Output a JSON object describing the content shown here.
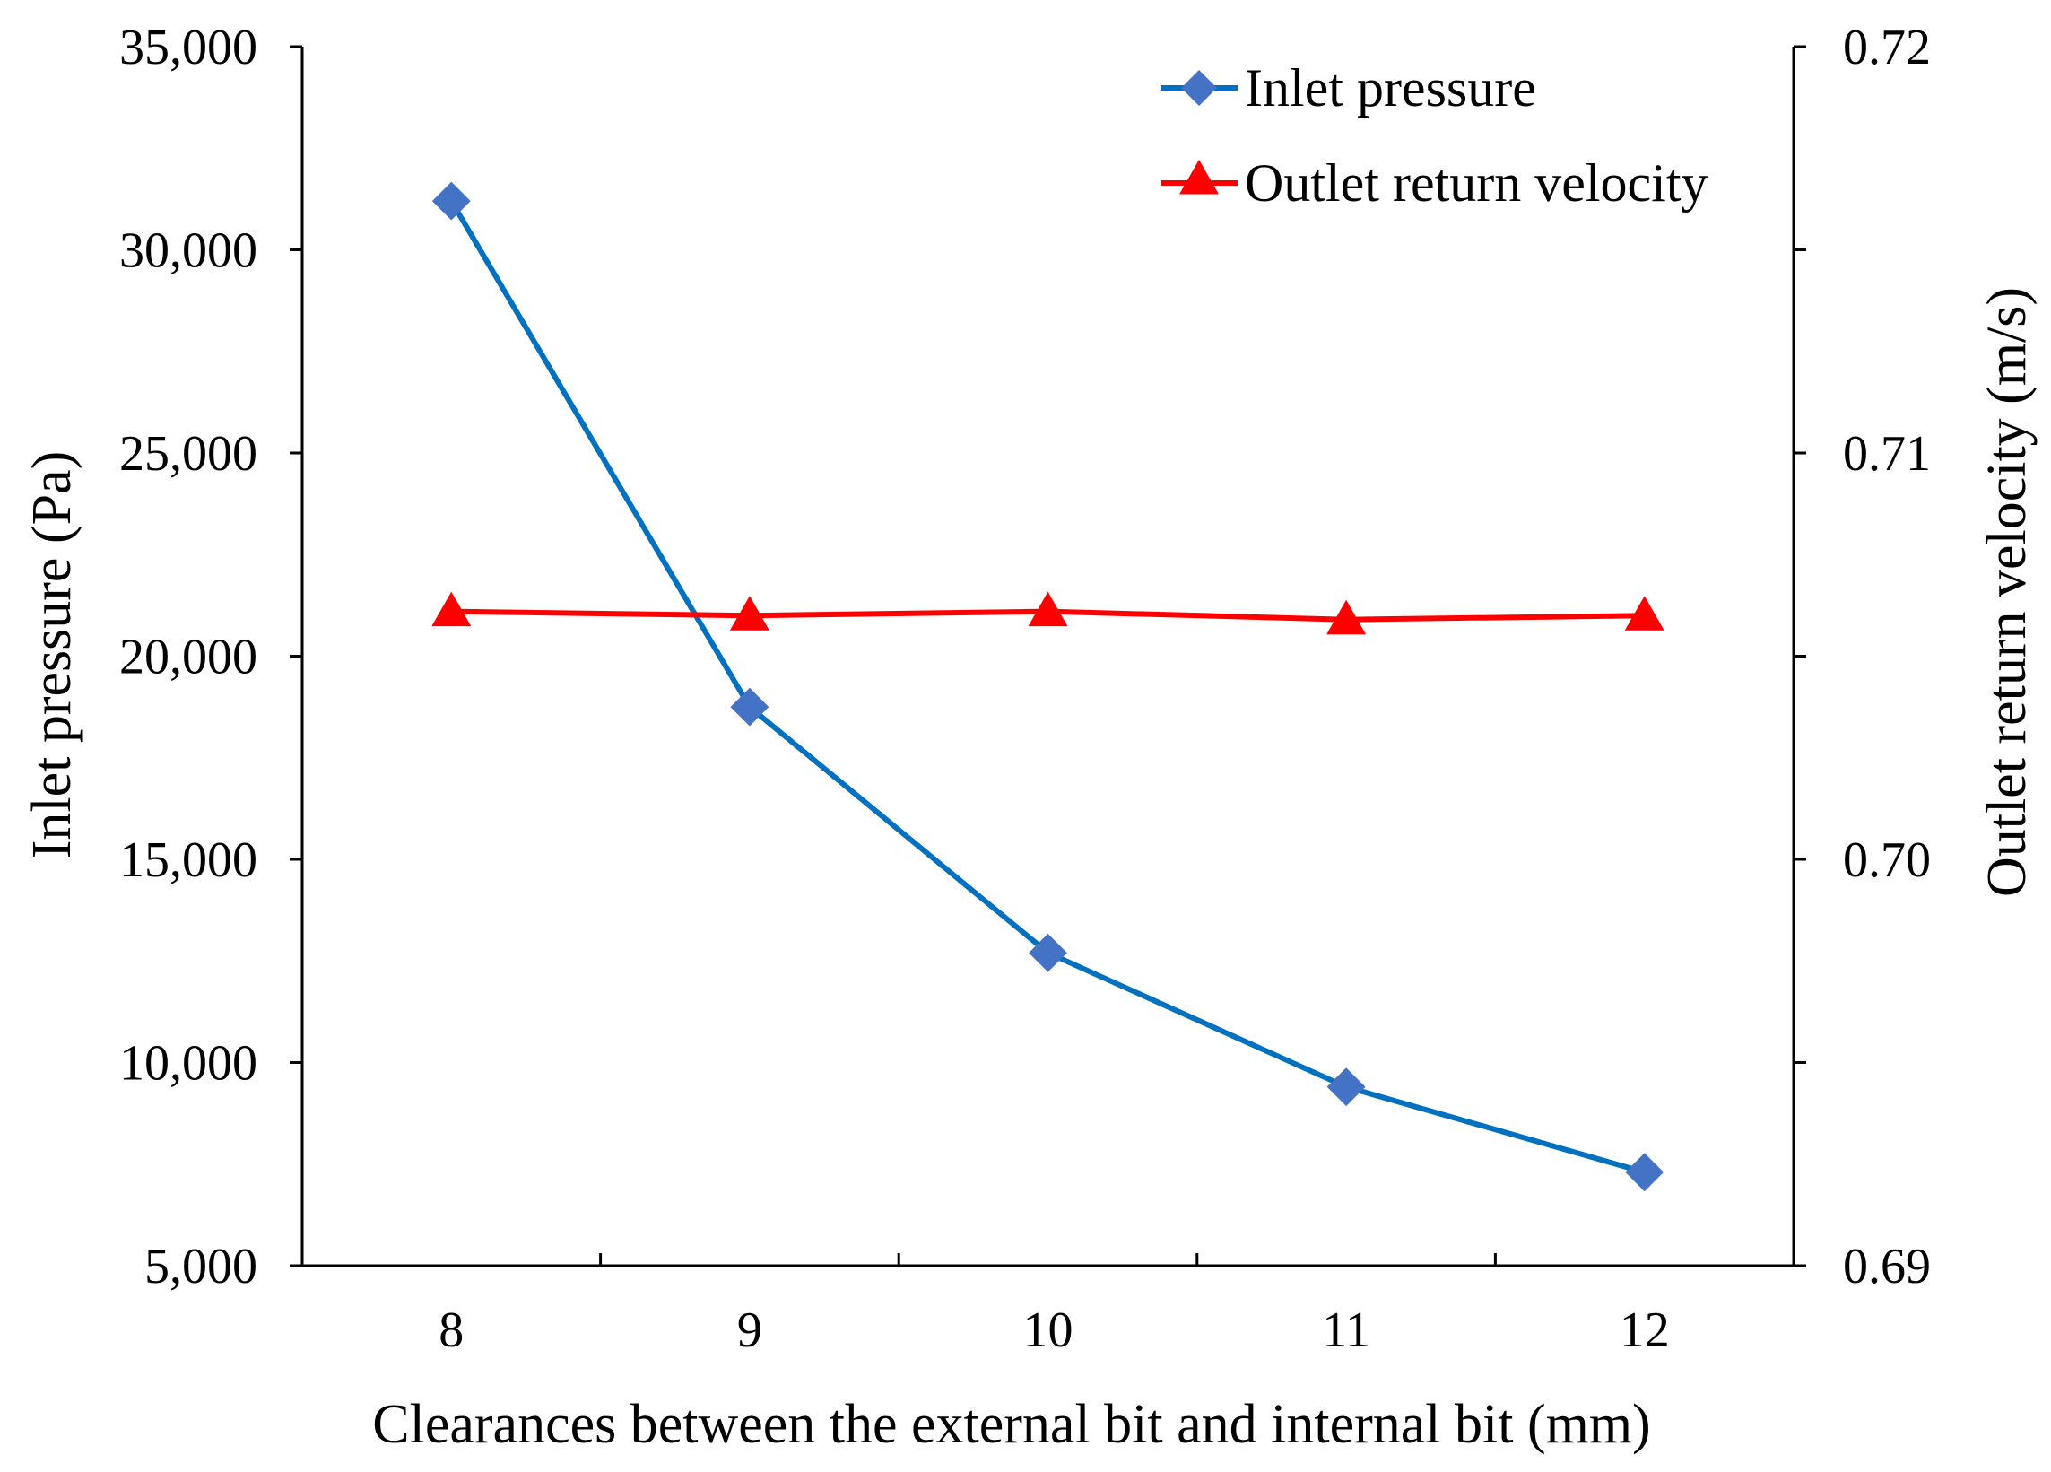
{
  "chart_data": {
    "type": "line",
    "x": [
      8,
      9,
      10,
      11,
      12
    ],
    "xlabel": "Clearances between the external bit and internal bit (mm)",
    "ylabel_left": "Inlet pressure (Pa)",
    "ylabel_right": "Outlet return velocity (m/s)",
    "ylim_left": [
      5000,
      35000
    ],
    "ylim_right": [
      0.69,
      0.72
    ],
    "yticks_left": [
      "5,000",
      "10,000",
      "15,000",
      "20,000",
      "25,000",
      "30,000",
      "35,000"
    ],
    "yticks_right": [
      "0.69",
      "0.70",
      "0.71",
      "0.72"
    ],
    "xticks": [
      "8",
      "9",
      "10",
      "11",
      "12"
    ],
    "grid": false,
    "legend_position": "top-right",
    "series": [
      {
        "name": "Inlet pressure",
        "axis": "left",
        "marker": "diamond",
        "color": "#4472C4",
        "line_color": "#0070C0",
        "values": [
          31200,
          18750,
          12700,
          9400,
          7300
        ]
      },
      {
        "name": "Outlet return velocity",
        "axis": "right",
        "marker": "triangle",
        "color": "#FF0000",
        "line_color": "#FF0000",
        "values": [
          0.7061,
          0.706,
          0.7061,
          0.7059,
          0.706
        ]
      }
    ]
  }
}
